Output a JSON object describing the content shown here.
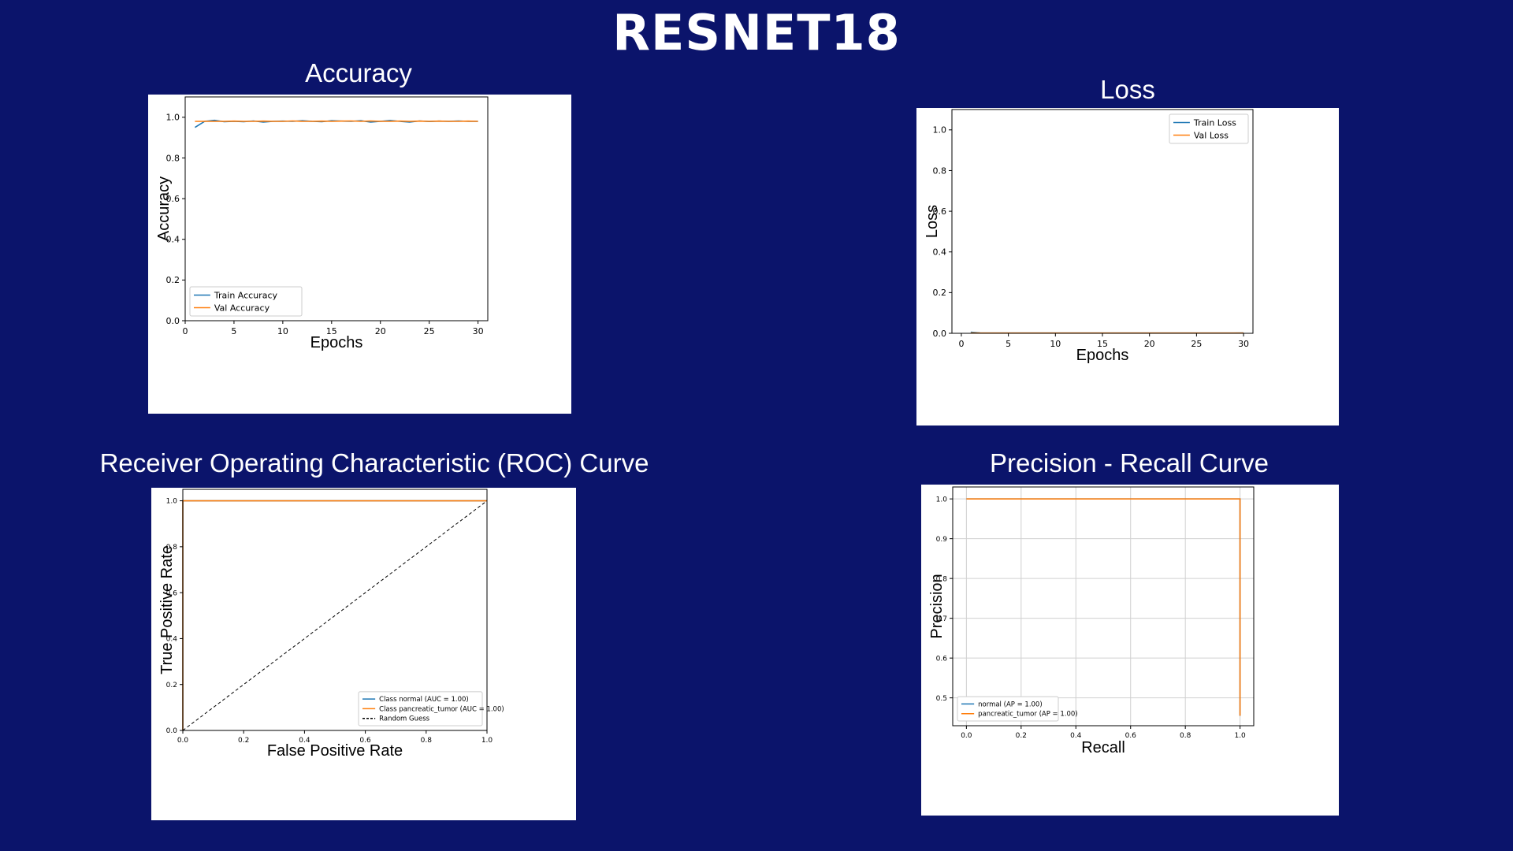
{
  "title": "RESNET18",
  "colors": {
    "background": "#0b146b",
    "blue": "#1f77b4",
    "orange": "#ff7f0e",
    "black": "#000000",
    "grid": "#d0d0d0"
  },
  "panels": {
    "accuracy": {
      "heading": "Accuracy"
    },
    "loss": {
      "heading": "Loss"
    },
    "roc": {
      "heading": "Receiver Operating Characteristic (ROC) Curve"
    },
    "pr": {
      "heading": "Precision - Recall Curve"
    }
  },
  "chart_data": [
    {
      "id": "accuracy",
      "type": "line",
      "title": "Accuracy",
      "xlabel": "Epochs",
      "ylabel": "Accuracy",
      "xlim": [
        0,
        31
      ],
      "ylim": [
        0,
        1.1
      ],
      "xticks": [
        0,
        5,
        10,
        15,
        20,
        25,
        30
      ],
      "yticks": [
        0.0,
        0.2,
        0.4,
        0.6,
        0.8,
        1.0
      ],
      "x": [
        1,
        2,
        3,
        4,
        5,
        6,
        7,
        8,
        9,
        10,
        11,
        12,
        13,
        14,
        15,
        16,
        17,
        18,
        19,
        20,
        21,
        22,
        23,
        24,
        25,
        26,
        27,
        28,
        29,
        30
      ],
      "series": [
        {
          "name": "Train Accuracy",
          "color": "#1f77b4",
          "values": [
            0.95,
            0.98,
            0.985,
            0.978,
            0.98,
            0.978,
            0.982,
            0.976,
            0.98,
            0.981,
            0.98,
            0.983,
            0.98,
            0.978,
            0.983,
            0.981,
            0.98,
            0.983,
            0.976,
            0.98,
            0.984,
            0.98,
            0.976,
            0.982,
            0.979,
            0.981,
            0.98,
            0.982,
            0.98,
            0.98
          ]
        },
        {
          "name": "Val Accuracy",
          "color": "#ff7f0e",
          "values": [
            0.98,
            0.98,
            0.98,
            0.98,
            0.981,
            0.98,
            0.98,
            0.981,
            0.98,
            0.98,
            0.982,
            0.98,
            0.98,
            0.981,
            0.98,
            0.981,
            0.982,
            0.98,
            0.982,
            0.98,
            0.98,
            0.981,
            0.98,
            0.981,
            0.98,
            0.981,
            0.98,
            0.98,
            0.981,
            0.98
          ]
        }
      ],
      "legend": "lower-left"
    },
    {
      "id": "loss",
      "type": "line",
      "title": "Loss",
      "xlabel": "Epochs",
      "ylabel": "Loss",
      "xlim": [
        -1,
        31
      ],
      "ylim": [
        0,
        1.1
      ],
      "xticks": [
        0,
        5,
        10,
        15,
        20,
        25,
        30
      ],
      "yticks": [
        0.0,
        0.2,
        0.4,
        0.6,
        0.8,
        1.0
      ],
      "x": [
        1,
        2,
        3,
        4,
        5,
        6,
        7,
        8,
        9,
        10,
        11,
        12,
        13,
        14,
        15,
        16,
        17,
        18,
        19,
        20,
        21,
        22,
        23,
        24,
        25,
        26,
        27,
        28,
        29,
        30
      ],
      "series": [
        {
          "name": "Train Loss",
          "color": "#1f77b4",
          "values": [
            0.006,
            0.002,
            0.001,
            0.001,
            0.001,
            0.001,
            0.001,
            0.001,
            0.001,
            0.001,
            0.001,
            0.001,
            0.001,
            0.001,
            0.001,
            0.001,
            0.001,
            0.001,
            0.001,
            0.001,
            0.001,
            0.001,
            0.001,
            0.001,
            0.001,
            0.001,
            0.001,
            0.001,
            0.001,
            0.002
          ]
        },
        {
          "name": "Val Loss",
          "color": "#ff7f0e",
          "values": [
            0.002,
            0.001,
            0.001,
            0.001,
            0.001,
            0.001,
            0.001,
            0.001,
            0.001,
            0.001,
            0.001,
            0.001,
            0.001,
            0.001,
            0.001,
            0.001,
            0.001,
            0.001,
            0.001,
            0.001,
            0.001,
            0.001,
            0.001,
            0.001,
            0.001,
            0.001,
            0.001,
            0.001,
            0.001,
            0.001
          ]
        }
      ],
      "legend": "upper-right"
    },
    {
      "id": "roc",
      "type": "line",
      "title": "Receiver Operating Characteristic (ROC) Curve",
      "xlabel": "False Positive Rate",
      "ylabel": "True Positive Rate",
      "xlim": [
        0,
        1
      ],
      "ylim": [
        0,
        1.05
      ],
      "xticks": [
        0.0,
        0.2,
        0.4,
        0.6,
        0.8,
        1.0
      ],
      "yticks": [
        0.0,
        0.2,
        0.4,
        0.6,
        0.8,
        1.0
      ],
      "series": [
        {
          "name": "Class normal (AUC = 1.00)",
          "color": "#1f77b4",
          "x": [
            0,
            0,
            1
          ],
          "y": [
            0,
            1,
            1
          ]
        },
        {
          "name": "Class pancreatic_tumor (AUC = 1.00)",
          "color": "#ff7f0e",
          "x": [
            0,
            0,
            1
          ],
          "y": [
            0,
            1,
            1
          ]
        },
        {
          "name": "Random Guess",
          "color": "#000000",
          "dashed": true,
          "x": [
            0,
            1
          ],
          "y": [
            0,
            1
          ]
        }
      ],
      "legend": "lower-right"
    },
    {
      "id": "pr",
      "type": "line",
      "title": "Precision - Recall Curve",
      "xlabel": "Recall",
      "ylabel": "Precision",
      "xlim": [
        -0.05,
        1.05
      ],
      "ylim": [
        0.43,
        1.03
      ],
      "xticks": [
        0.0,
        0.2,
        0.4,
        0.6,
        0.8,
        1.0
      ],
      "yticks": [
        0.5,
        0.6,
        0.7,
        0.8,
        0.9,
        1.0
      ],
      "grid": true,
      "series": [
        {
          "name": "normal (AP = 1.00)",
          "color": "#1f77b4",
          "x": [
            0,
            1,
            1
          ],
          "y": [
            1.0,
            1.0,
            0.455
          ]
        },
        {
          "name": "pancreatic_tumor (AP = 1.00)",
          "color": "#ff7f0e",
          "x": [
            0,
            1,
            1
          ],
          "y": [
            1.0,
            1.0,
            0.455
          ]
        }
      ],
      "legend": "lower-left"
    }
  ]
}
